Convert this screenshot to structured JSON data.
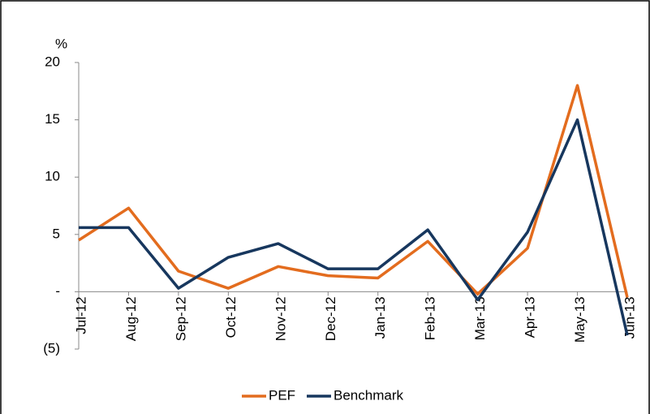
{
  "chart_data": {
    "type": "line",
    "y_label": "%",
    "categories": [
      "Jul-12",
      "Aug-12",
      "Sep-12",
      "Oct-12",
      "Nov-12",
      "Dec-12",
      "Jan-13",
      "Feb-13",
      "Mar-13",
      "Apr-13",
      "May-13",
      "Jun-13"
    ],
    "series": [
      {
        "name": "PEF",
        "color": "#e36c1e",
        "values": [
          4.5,
          7.3,
          1.8,
          0.3,
          2.2,
          1.4,
          1.2,
          4.4,
          -0.2,
          3.8,
          18.0,
          -0.5
        ]
      },
      {
        "name": "Benchmark",
        "color": "#17375e",
        "values": [
          5.6,
          5.6,
          0.3,
          3.0,
          4.2,
          2.0,
          2.0,
          5.4,
          -0.7,
          5.2,
          15.0,
          -3.8
        ]
      }
    ],
    "ylim": [
      -5,
      20
    ],
    "yticks": [
      {
        "value": -5,
        "label": "(5)"
      },
      {
        "value": 0,
        "label": "-"
      },
      5,
      10,
      15,
      20
    ],
    "grid": false,
    "legend": "bottom"
  }
}
